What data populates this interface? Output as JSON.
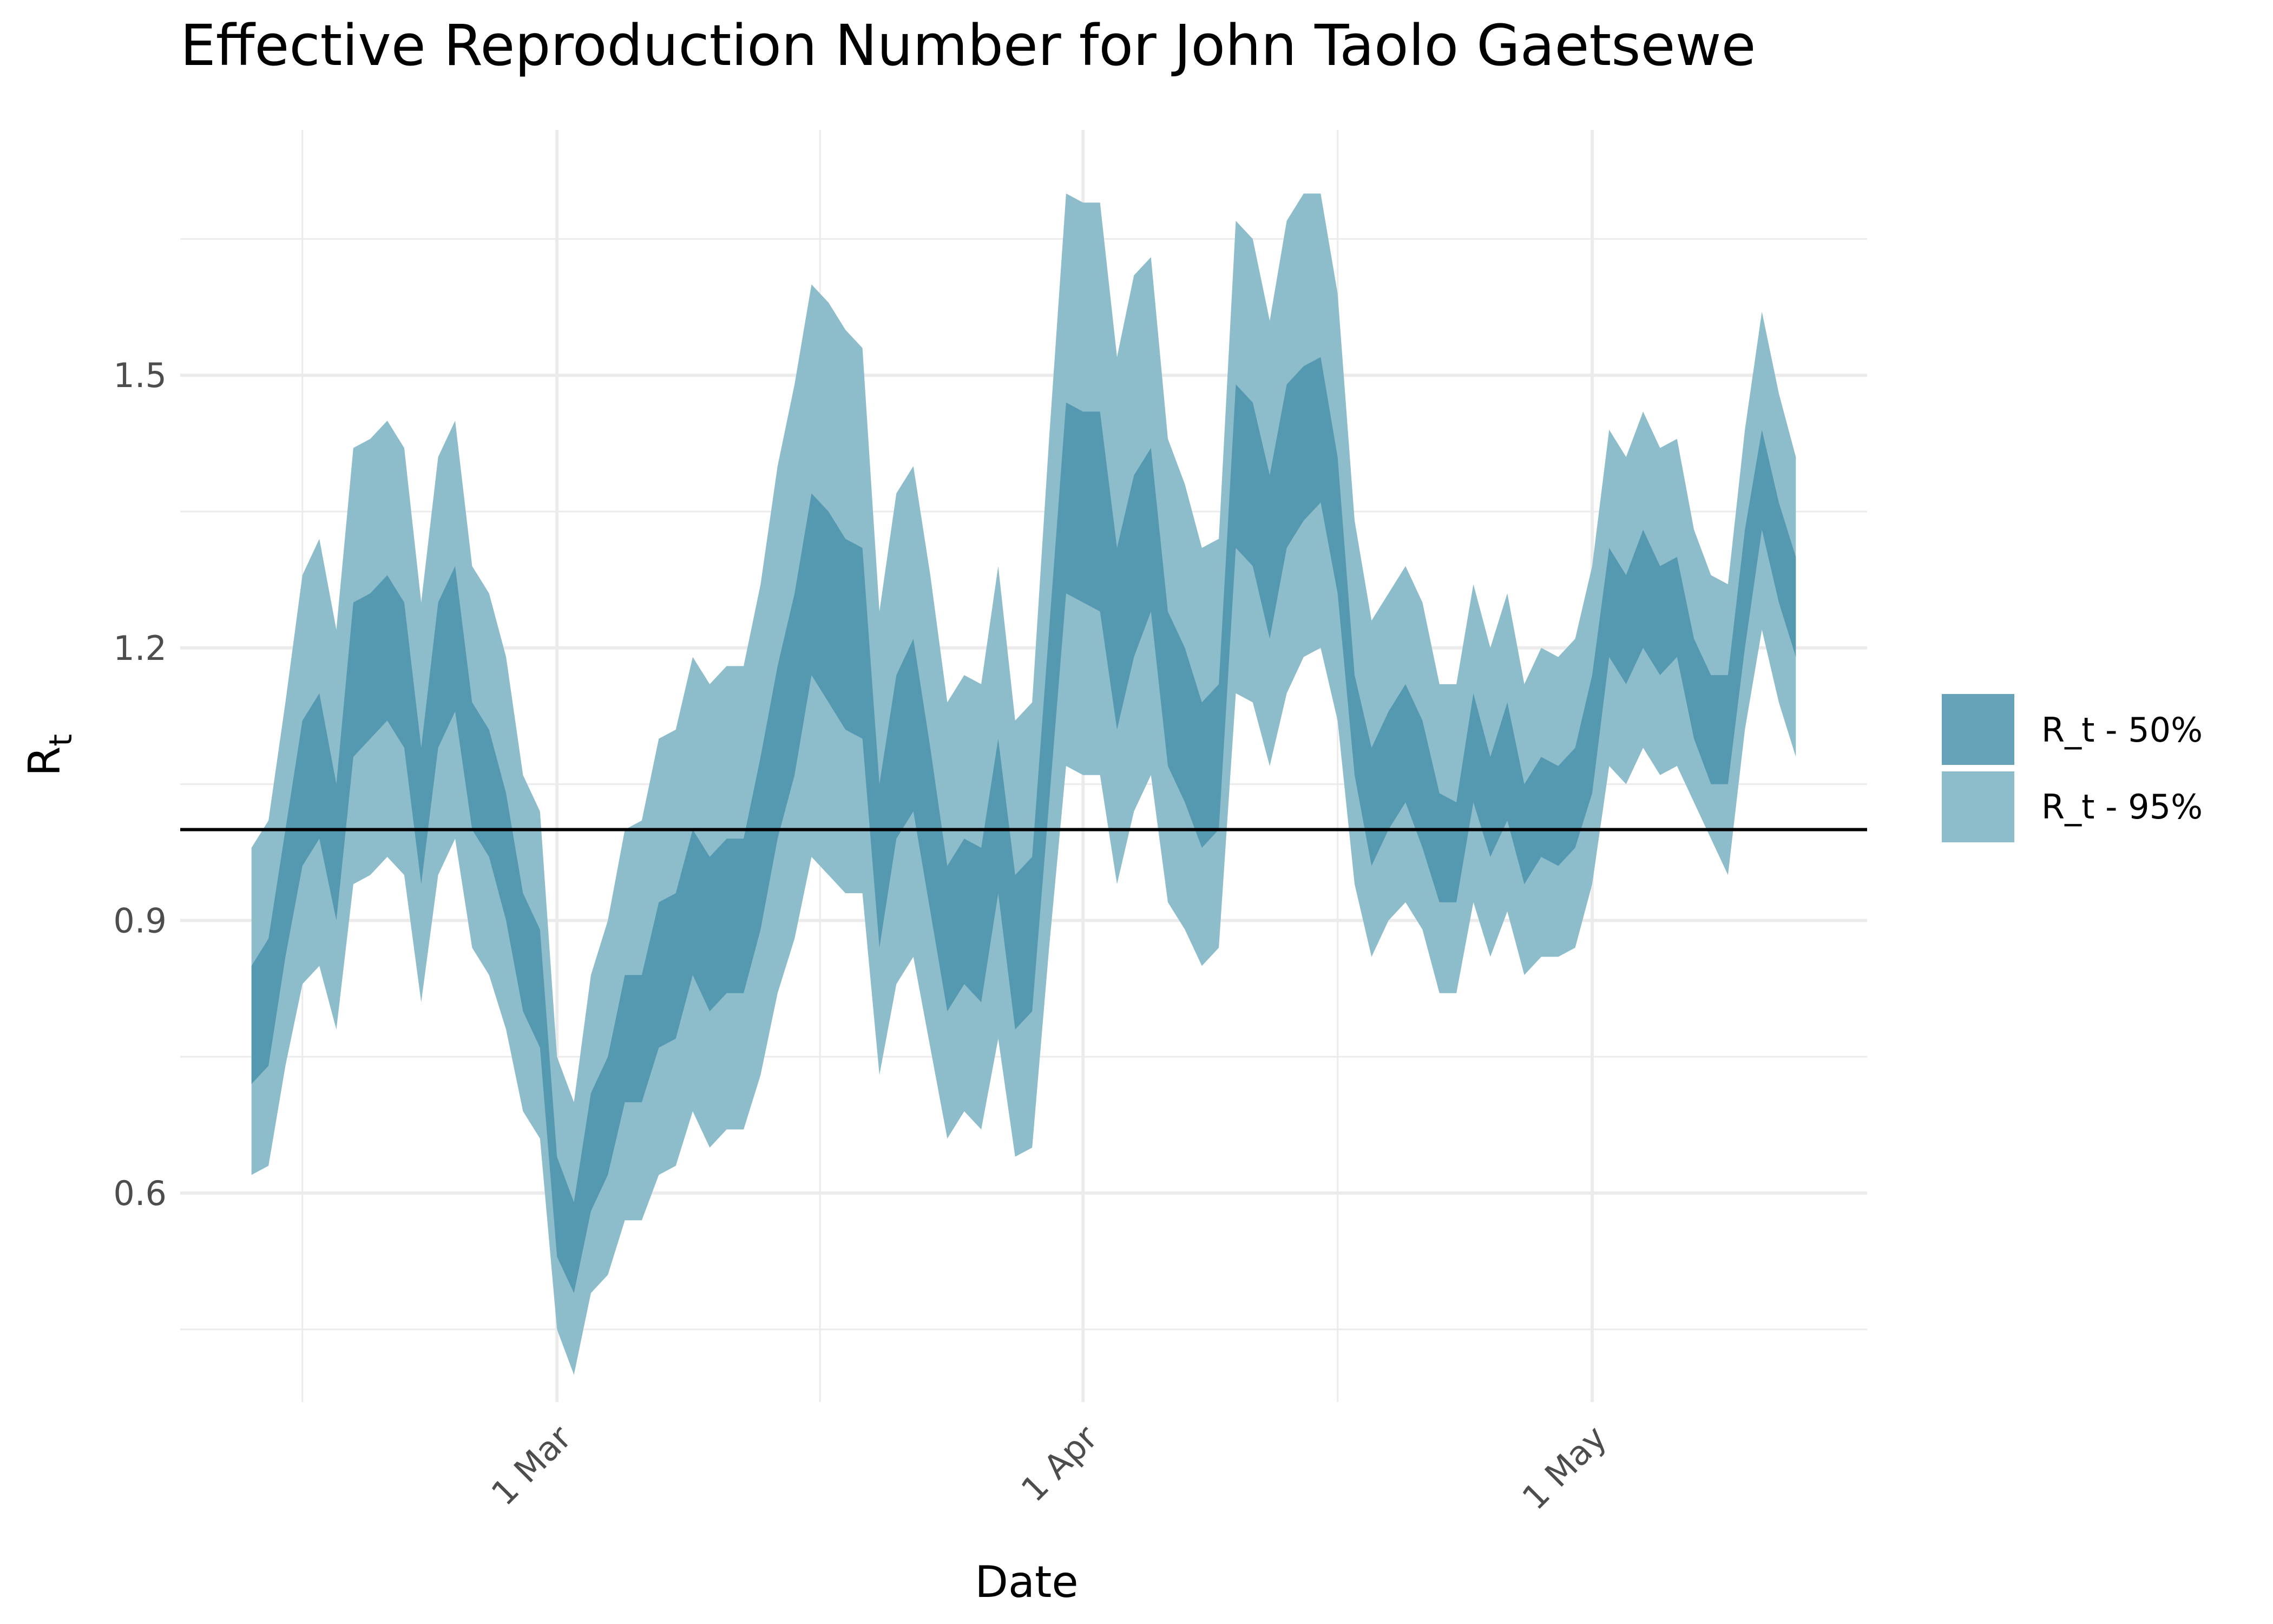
{
  "chart_data": {
    "type": "area",
    "title": "Effective Reproduction Number for John Taolo Gaetsewe",
    "xlabel": "Date",
    "ylabel": "R",
    "ylabel_subscript": "t",
    "x_ticks": [
      "1 Mar",
      "1 Apr",
      "1 May"
    ],
    "y_ticks": [
      0.6,
      0.9,
      1.2,
      1.5
    ],
    "ylim": [
      0.37,
      1.77
    ],
    "grid": true,
    "reference_line": 1.0,
    "legend": {
      "position": "right",
      "entries": [
        "R_t - 50%",
        "R_t - 95%"
      ]
    },
    "colors": {
      "band50": "#4b93ad",
      "band95": "#8dbccb",
      "reference_line": "#000000",
      "grid": "#ebebeb"
    },
    "x": [
      "2025-02-11",
      "2025-02-12",
      "2025-02-13",
      "2025-02-14",
      "2025-02-15",
      "2025-02-16",
      "2025-02-17",
      "2025-02-18",
      "2025-02-19",
      "2025-02-20",
      "2025-02-21",
      "2025-02-22",
      "2025-02-23",
      "2025-02-24",
      "2025-02-25",
      "2025-02-26",
      "2025-02-27",
      "2025-02-28",
      "2025-03-01",
      "2025-03-02",
      "2025-03-03",
      "2025-03-04",
      "2025-03-05",
      "2025-03-06",
      "2025-03-07",
      "2025-03-08",
      "2025-03-09",
      "2025-03-10",
      "2025-03-11",
      "2025-03-12",
      "2025-03-13",
      "2025-03-14",
      "2025-03-15",
      "2025-03-16",
      "2025-03-17",
      "2025-03-18",
      "2025-03-19",
      "2025-03-20",
      "2025-03-21",
      "2025-03-22",
      "2025-03-23",
      "2025-03-24",
      "2025-03-25",
      "2025-03-26",
      "2025-03-27",
      "2025-03-28",
      "2025-03-29",
      "2025-03-30",
      "2025-03-31",
      "2025-04-01",
      "2025-04-02",
      "2025-04-03",
      "2025-04-04",
      "2025-04-05",
      "2025-04-06",
      "2025-04-07",
      "2025-04-08",
      "2025-04-09",
      "2025-04-10",
      "2025-04-11",
      "2025-04-12",
      "2025-04-13",
      "2025-04-14",
      "2025-04-15",
      "2025-04-16",
      "2025-04-17",
      "2025-04-18",
      "2025-04-19",
      "2025-04-20",
      "2025-04-21",
      "2025-04-22",
      "2025-04-23",
      "2025-04-24",
      "2025-04-25",
      "2025-04-26",
      "2025-04-27",
      "2025-04-28",
      "2025-04-29",
      "2025-04-30",
      "2025-05-01",
      "2025-05-02",
      "2025-05-03",
      "2025-05-04",
      "2025-05-05",
      "2025-05-06",
      "2025-05-07",
      "2025-05-08",
      "2025-05-09",
      "2025-05-10",
      "2025-05-11",
      "2025-05-12",
      "2025-05-13"
    ],
    "series": [
      {
        "name": "R_t - 95%",
        "lower": [
          0.62,
          0.63,
          0.74,
          0.83,
          0.85,
          0.78,
          0.94,
          0.95,
          0.97,
          0.95,
          0.81,
          0.95,
          0.99,
          0.87,
          0.84,
          0.78,
          0.69,
          0.66,
          0.45,
          0.4,
          0.49,
          0.51,
          0.57,
          0.57,
          0.62,
          0.63,
          0.69,
          0.65,
          0.67,
          0.67,
          0.73,
          0.82,
          0.88,
          0.97,
          0.95,
          0.93,
          0.93,
          0.73,
          0.83,
          0.86,
          0.76,
          0.66,
          0.69,
          0.67,
          0.77,
          0.64,
          0.65,
          0.87,
          1.07,
          1.06,
          1.06,
          0.94,
          1.02,
          1.06,
          0.92,
          0.89,
          0.85,
          0.87,
          1.15,
          1.14,
          1.07,
          1.15,
          1.19,
          1.2,
          1.12,
          0.94,
          0.86,
          0.9,
          0.92,
          0.89,
          0.82,
          0.82,
          0.92,
          0.86,
          0.91,
          0.84,
          0.86,
          0.86,
          0.87,
          0.94,
          1.07,
          1.05,
          1.09,
          1.06,
          1.07,
          1.03,
          0.99,
          0.95,
          1.11,
          1.22,
          1.14,
          1.08
        ],
        "upper": [
          0.98,
          1.01,
          1.14,
          1.28,
          1.32,
          1.22,
          1.42,
          1.43,
          1.45,
          1.42,
          1.25,
          1.41,
          1.45,
          1.29,
          1.26,
          1.19,
          1.06,
          1.02,
          0.75,
          0.7,
          0.84,
          0.9,
          1.0,
          1.01,
          1.1,
          1.11,
          1.19,
          1.16,
          1.18,
          1.18,
          1.27,
          1.4,
          1.49,
          1.6,
          1.58,
          1.55,
          1.53,
          1.24,
          1.37,
          1.4,
          1.28,
          1.14,
          1.17,
          1.16,
          1.29,
          1.12,
          1.14,
          1.43,
          1.7,
          1.69,
          1.69,
          1.52,
          1.61,
          1.63,
          1.43,
          1.38,
          1.31,
          1.32,
          1.67,
          1.65,
          1.56,
          1.67,
          1.7,
          1.7,
          1.59,
          1.34,
          1.23,
          1.26,
          1.29,
          1.25,
          1.16,
          1.16,
          1.27,
          1.2,
          1.26,
          1.16,
          1.2,
          1.19,
          1.21,
          1.29,
          1.44,
          1.41,
          1.46,
          1.42,
          1.43,
          1.33,
          1.28,
          1.27,
          1.44,
          1.57,
          1.48,
          1.41
        ]
      },
      {
        "name": "R_t - 50%",
        "lower": [
          0.72,
          0.74,
          0.86,
          0.96,
          0.99,
          0.9,
          1.08,
          1.1,
          1.12,
          1.09,
          0.94,
          1.09,
          1.13,
          1.0,
          0.97,
          0.9,
          0.8,
          0.76,
          0.53,
          0.49,
          0.58,
          0.62,
          0.7,
          0.7,
          0.76,
          0.77,
          0.84,
          0.8,
          0.82,
          0.82,
          0.89,
          0.99,
          1.06,
          1.17,
          1.14,
          1.11,
          1.1,
          0.87,
          0.99,
          1.02,
          0.91,
          0.8,
          0.83,
          0.81,
          0.93,
          0.78,
          0.8,
          1.03,
          1.26,
          1.25,
          1.24,
          1.11,
          1.19,
          1.24,
          1.07,
          1.03,
          0.98,
          1.0,
          1.31,
          1.29,
          1.21,
          1.31,
          1.34,
          1.36,
          1.26,
          1.06,
          0.96,
          1.0,
          1.03,
          0.98,
          0.92,
          0.92,
          1.03,
          0.97,
          1.01,
          0.94,
          0.97,
          0.96,
          0.98,
          1.04,
          1.19,
          1.16,
          1.2,
          1.17,
          1.19,
          1.1,
          1.05,
          1.05,
          1.2,
          1.33,
          1.25,
          1.19
        ],
        "upper": [
          0.85,
          0.88,
          1.0,
          1.12,
          1.15,
          1.05,
          1.25,
          1.26,
          1.28,
          1.25,
          1.09,
          1.25,
          1.29,
          1.14,
          1.11,
          1.04,
          0.93,
          0.89,
          0.64,
          0.59,
          0.71,
          0.75,
          0.84,
          0.84,
          0.92,
          0.93,
          1.0,
          0.97,
          0.99,
          0.99,
          1.08,
          1.18,
          1.26,
          1.37,
          1.35,
          1.32,
          1.31,
          1.05,
          1.17,
          1.21,
          1.09,
          0.96,
          0.99,
          0.98,
          1.1,
          0.95,
          0.97,
          1.22,
          1.47,
          1.46,
          1.46,
          1.31,
          1.39,
          1.42,
          1.24,
          1.2,
          1.14,
          1.16,
          1.49,
          1.47,
          1.39,
          1.49,
          1.51,
          1.52,
          1.41,
          1.17,
          1.09,
          1.13,
          1.16,
          1.12,
          1.04,
          1.03,
          1.15,
          1.08,
          1.14,
          1.05,
          1.08,
          1.07,
          1.09,
          1.17,
          1.31,
          1.28,
          1.33,
          1.29,
          1.3,
          1.21,
          1.17,
          1.17,
          1.33,
          1.44,
          1.36,
          1.3
        ]
      }
    ]
  }
}
